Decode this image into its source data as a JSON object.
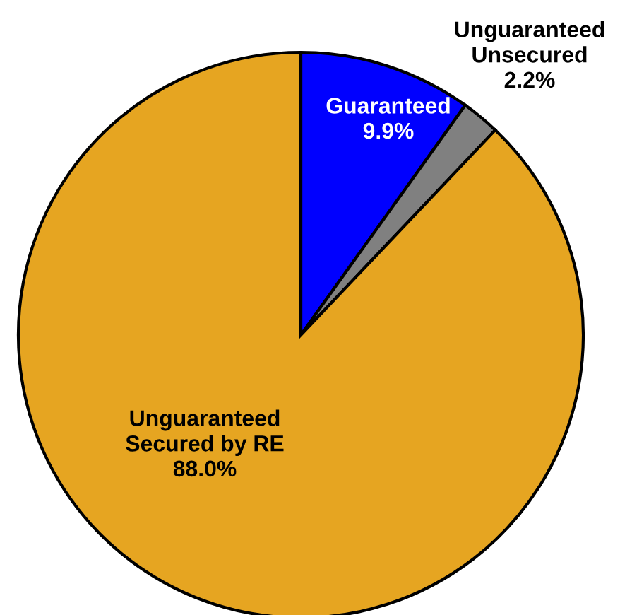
{
  "chart_data": {
    "type": "pie",
    "categories": [
      "Guaranteed",
      "Unguaranteed\nUnsecured",
      "Unguaranteed\nSecured by RE"
    ],
    "values": [
      9.9,
      2.2,
      88.0
    ],
    "value_labels": [
      "9.9%",
      "2.2%",
      "88.0%"
    ],
    "colors": [
      "#0000ff",
      "#808080",
      "#e6a521"
    ]
  }
}
